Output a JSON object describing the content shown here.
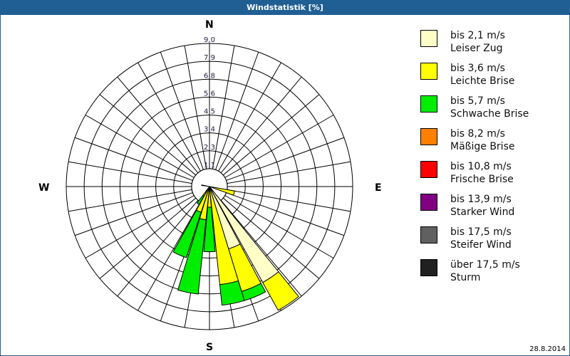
{
  "header": {
    "title": "Windstatistik [%]"
  },
  "footer": {
    "date": "28.8.2014"
  },
  "compass": {
    "N": "N",
    "E": "E",
    "S": "S",
    "W": "W"
  },
  "legend": [
    {
      "range": "bis 2,1 m/s",
      "label": "Leiser Zug",
      "color": "#ffffc8"
    },
    {
      "range": "bis 3,6 m/s",
      "label": "Leichte Brise",
      "color": "#ffff00"
    },
    {
      "range": "bis 5,7 m/s",
      "label": "Schwache Brise",
      "color": "#00ee00"
    },
    {
      "range": "bis 8,2 m/s",
      "label": "Mäßige Brise",
      "color": "#ff8000"
    },
    {
      "range": "bis 10,8 m/s",
      "label": "Frische Brise",
      "color": "#ff0000"
    },
    {
      "range": "bis 13,9 m/s",
      "label": "Starker Wind",
      "color": "#800080"
    },
    {
      "range": "bis 17,5 m/s",
      "label": "Steifer Wind",
      "color": "#606060"
    },
    {
      "range": "über 17,5 m/s",
      "label": "Sturm",
      "color": "#202020"
    }
  ],
  "chart_data": {
    "type": "wind-rose",
    "title": "Windstatistik [%]",
    "radial_ticks": [
      "1,1",
      "2,3",
      "3,4",
      "4,5",
      "5,6",
      "6,8",
      "7,9",
      "9,0"
    ],
    "radial_max": 9.0,
    "sector_width_deg": 10,
    "grid": {
      "rings": 8,
      "spokes_every_deg": 10
    },
    "legend_position": "right",
    "series_names": [
      "Leiser Zug",
      "Leichte Brise",
      "Schwache Brise",
      "Mäßige Brise",
      "Frische Brise",
      "Starker Wind",
      "Steifer Wind",
      "Sturm"
    ],
    "petals": [
      {
        "dir_from": 100,
        "dir_to": 110,
        "stack": [
          {
            "class": "Leichte Brise",
            "to_pct": 1.6
          }
        ]
      },
      {
        "dir_from": 141,
        "dir_to": 151,
        "stack": [
          {
            "class": "Leiser Zug",
            "to_pct": 6.9
          },
          {
            "class": "Leichte Brise",
            "to_pct": 8.9
          }
        ]
      },
      {
        "dir_from": 152,
        "dir_to": 163,
        "stack": [
          {
            "class": "Leiser Zug",
            "to_pct": 4.1
          },
          {
            "class": "Leichte Brise",
            "to_pct": 6.9
          },
          {
            "class": "Schwache Brise",
            "to_pct": 7.5
          }
        ]
      },
      {
        "dir_from": 163,
        "dir_to": 174,
        "stack": [
          {
            "class": "Leichte Brise",
            "to_pct": 6.2
          },
          {
            "class": "Schwache Brise",
            "to_pct": 7.5
          }
        ]
      },
      {
        "dir_from": 175,
        "dir_to": 185,
        "stack": [
          {
            "class": "Leichte Brise",
            "to_pct": 1.3
          },
          {
            "class": "Schwache Brise",
            "to_pct": 4.1
          }
        ]
      },
      {
        "dir_from": 186,
        "dir_to": 197,
        "stack": [
          {
            "class": "Leichte Brise",
            "to_pct": 2.1
          },
          {
            "class": "Schwache Brise",
            "to_pct": 6.8
          }
        ]
      },
      {
        "dir_from": 198,
        "dir_to": 209,
        "stack": [
          {
            "class": "Leichte Brise",
            "to_pct": 1.7
          },
          {
            "class": "Schwache Brise",
            "to_pct": 4.7
          }
        ]
      },
      {
        "dir_from": 210,
        "dir_to": 217,
        "stack": [
          {
            "class": "Leichte Brise",
            "to_pct": 0.7
          },
          {
            "class": "Schwache Brise",
            "to_pct": 1.3
          }
        ]
      },
      {
        "dir_from": 278,
        "dir_to": 282,
        "stack": [
          {
            "class": "Sturm",
            "to_pct": 0.5
          }
        ]
      }
    ]
  }
}
